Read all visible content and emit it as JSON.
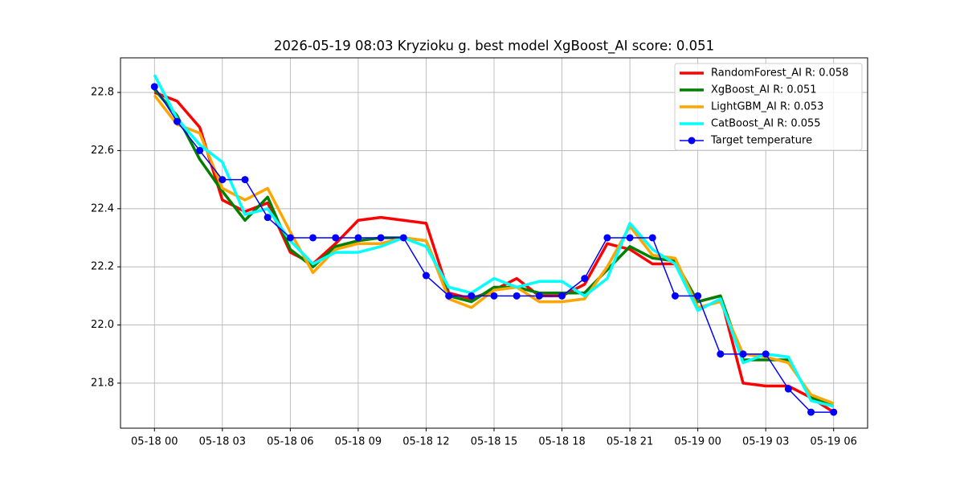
{
  "chart_data": {
    "type": "line",
    "title": "2026-05-19 08:03 Kryzioku g. best model XgBoost_AI score: 0.051",
    "x": [
      "05-18 00",
      "05-18 01",
      "05-18 02",
      "05-18 03",
      "05-18 04",
      "05-18 05",
      "05-18 06",
      "05-18 07",
      "05-18 08",
      "05-18 09",
      "05-18 10",
      "05-18 11",
      "05-18 12",
      "05-18 13",
      "05-18 14",
      "05-18 15",
      "05-18 16",
      "05-18 17",
      "05-18 18",
      "05-18 19",
      "05-18 20",
      "05-18 21",
      "05-18 22",
      "05-18 23",
      "05-19 00",
      "05-19 01",
      "05-19 02",
      "05-19 03",
      "05-19 04",
      "05-19 05",
      "05-19 06"
    ],
    "xticks": [
      "05-18 00",
      "05-18 03",
      "05-18 06",
      "05-18 09",
      "05-18 12",
      "05-18 15",
      "05-18 18",
      "05-18 21",
      "05-19 00",
      "05-19 03",
      "05-19 06"
    ],
    "ylim": [
      21.645,
      22.919
    ],
    "yticks": [
      21.8,
      {
        "value": 22,
        "label": "22.0"
      },
      22.2,
      22.4,
      22.6,
      22.8
    ],
    "grid": true,
    "legend": "upper right",
    "series": [
      {
        "name": "RandomForest_AI R: 0.058",
        "color": "#ff0000",
        "values": [
          22.8,
          22.77,
          22.68,
          22.43,
          22.39,
          22.42,
          22.25,
          22.21,
          22.28,
          22.36,
          22.37,
          22.36,
          22.35,
          22.11,
          22.09,
          22.12,
          22.16,
          22.1,
          22.1,
          22.14,
          22.28,
          22.26,
          22.21,
          22.21,
          22.08,
          22.1,
          21.8,
          21.79,
          21.79,
          21.75,
          21.7
        ]
      },
      {
        "name": "XgBoost_AI R: 0.051",
        "color": "#008000",
        "values": [
          22.81,
          22.72,
          22.57,
          22.46,
          22.36,
          22.44,
          22.26,
          22.2,
          22.27,
          22.29,
          22.3,
          22.3,
          22.29,
          22.1,
          22.08,
          22.13,
          22.13,
          22.11,
          22.11,
          22.11,
          22.19,
          22.27,
          22.23,
          22.22,
          22.08,
          22.1,
          21.88,
          21.88,
          21.88,
          21.75,
          21.72
        ]
      },
      {
        "name": "LightGBM_AI R: 0.053",
        "color": "#ffa500",
        "values": [
          22.79,
          22.69,
          22.66,
          22.47,
          22.43,
          22.47,
          22.32,
          22.18,
          22.26,
          22.28,
          22.28,
          22.3,
          22.29,
          22.09,
          22.06,
          22.12,
          22.13,
          22.08,
          22.08,
          22.09,
          22.2,
          22.34,
          22.24,
          22.23,
          22.06,
          22.08,
          21.9,
          21.89,
          21.87,
          21.76,
          21.73
        ]
      },
      {
        "name": "CatBoost_AI R: 0.055",
        "color": "#00ffff",
        "values": [
          22.86,
          22.71,
          22.62,
          22.56,
          22.38,
          22.4,
          22.29,
          22.21,
          22.25,
          22.25,
          22.27,
          22.3,
          22.27,
          22.13,
          22.11,
          22.16,
          22.13,
          22.15,
          22.15,
          22.1,
          22.16,
          22.35,
          22.26,
          22.21,
          22.05,
          22.09,
          21.87,
          21.9,
          21.89,
          21.74,
          21.72
        ]
      },
      {
        "name": "Target temperature",
        "color": "#0000ff",
        "marker": "o",
        "values": [
          22.82,
          22.7,
          22.6,
          22.5,
          22.5,
          22.37,
          22.3,
          22.3,
          22.3,
          22.3,
          22.3,
          22.3,
          22.17,
          22.1,
          22.1,
          22.1,
          22.1,
          22.1,
          22.1,
          22.16,
          22.3,
          22.3,
          22.3,
          22.1,
          22.1,
          21.9,
          21.9,
          21.9,
          21.78,
          21.7,
          21.7
        ]
      }
    ]
  }
}
